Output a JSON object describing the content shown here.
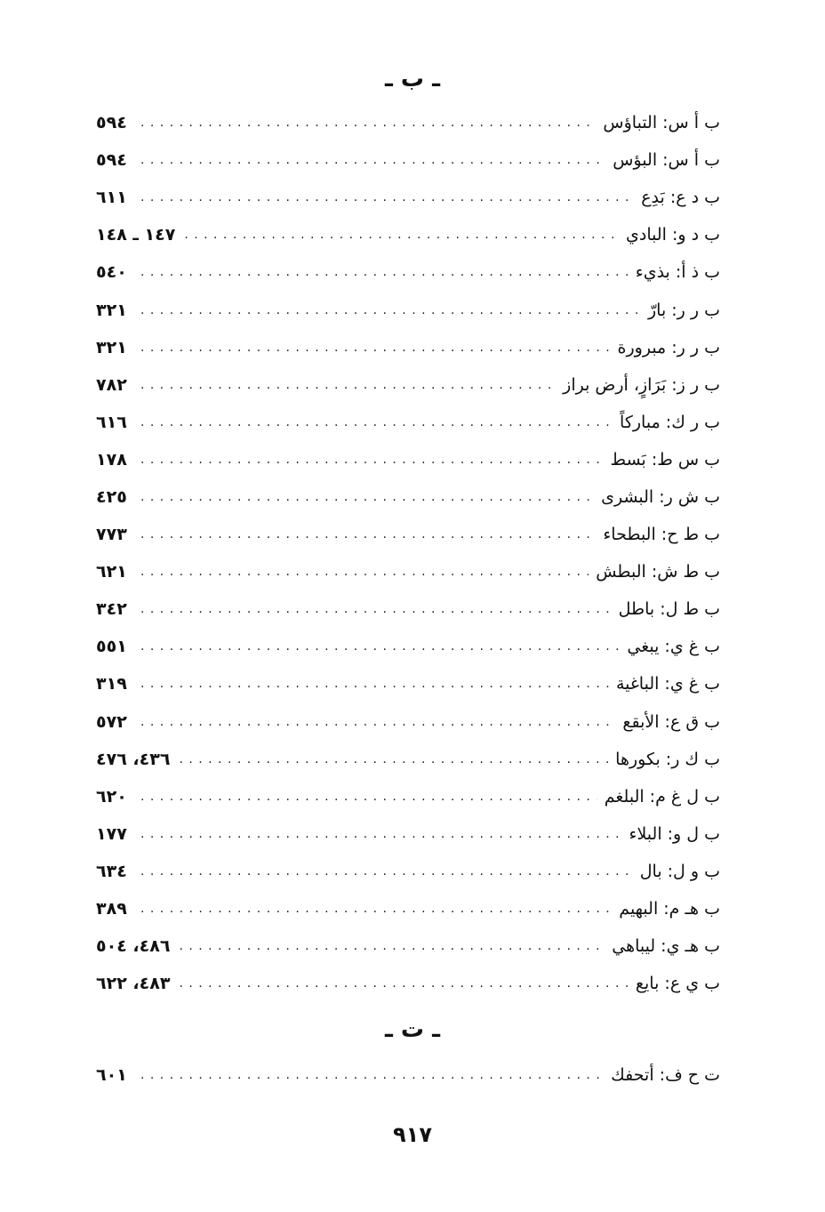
{
  "sections": [
    {
      "letter": "ـ ب ـ",
      "entries": [
        {
          "term": "ب أ س: التباؤس",
          "pages": "٥٩٤"
        },
        {
          "term": "ب أ س: البؤس",
          "pages": "٥٩٤"
        },
        {
          "term": "ب د ع: بَدِع",
          "pages": "٦١١"
        },
        {
          "term": "ب د و: البادي",
          "pages": "١٤٧ ـ ١٤٨"
        },
        {
          "term": "ب ذ أ: بذيء",
          "pages": "٥٤٠"
        },
        {
          "term": "ب ر ر: بارّ",
          "pages": "٣٢١"
        },
        {
          "term": "ب ر ر: مبرورة",
          "pages": "٣٢١"
        },
        {
          "term": "ب ر ز: بَرَازٍ، أرض براز",
          "pages": "٧٨٢"
        },
        {
          "term": "ب ر ك: مباركاً",
          "pages": "٦١٦"
        },
        {
          "term": "ب س ط: بَسط",
          "pages": "١٧٨"
        },
        {
          "term": "ب ش ر: البشرى",
          "pages": "٤٢٥"
        },
        {
          "term": "ب ط ح: البطحاء",
          "pages": "٧٧٣"
        },
        {
          "term": "ب ط ش: البطش",
          "pages": "٦٢١"
        },
        {
          "term": "ب ط ل: باطل",
          "pages": "٣٤٢"
        },
        {
          "term": "ب غ ي: يبغي",
          "pages": "٥٥١"
        },
        {
          "term": "ب غ ي: الباغية",
          "pages": "٣١٩"
        },
        {
          "term": "ب ق ع: الأبقع",
          "pages": "٥٧٢"
        },
        {
          "term": "ب ك ر: بكورها",
          "pages": "٤٣٦، ٤٧٦"
        },
        {
          "term": "ب ل غ م: البلغم",
          "pages": "٦٢٠"
        },
        {
          "term": "ب ل و: البلاء",
          "pages": "١٧٧"
        },
        {
          "term": "ب و ل: بال",
          "pages": "٦٣٤"
        },
        {
          "term": "ب هـ م: البهيم",
          "pages": "٣٨٩"
        },
        {
          "term": "ب هـ ي: ليباهي",
          "pages": "٤٨٦، ٥٠٤"
        },
        {
          "term": "ب ي ع: بايع",
          "pages": "٤٨٣، ٦٢٢"
        }
      ]
    },
    {
      "letter": "ـ ت ـ",
      "entries": [
        {
          "term": "ت ح ف: أتحفك",
          "pages": "٦٠١"
        }
      ]
    }
  ],
  "page_number": "٩١٧"
}
